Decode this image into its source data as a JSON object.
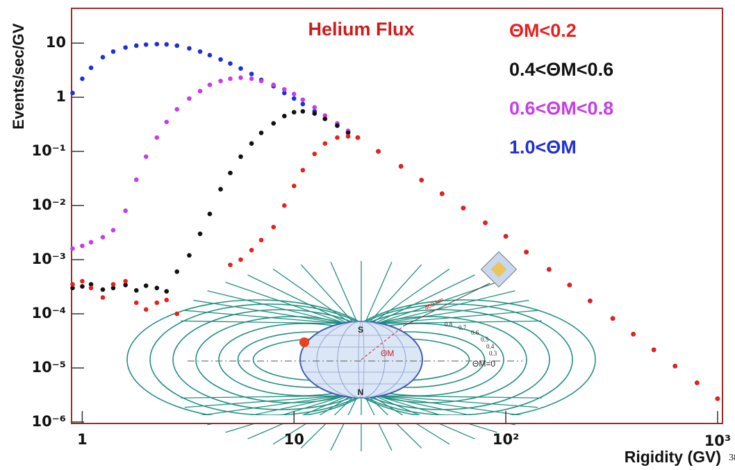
{
  "chart_data": {
    "type": "scatter",
    "title": "Helium Flux",
    "x_label": "Rigidity (GV)",
    "y_label": "Events/sec/GV",
    "log_x": true,
    "log_y": true,
    "legend_position": "upper right",
    "xlim": [
      0.89,
      1055
    ],
    "ylim": [
      9.4e-07,
      44
    ],
    "xticks": [
      1,
      10,
      {
        "value": 100,
        "label": "10²"
      },
      {
        "value": 1000,
        "label": "10³"
      }
    ],
    "yticks": [
      10,
      1,
      {
        "value": 0.1,
        "label": "10⁻¹"
      },
      {
        "value": 0.01,
        "label": "10⁻²"
      },
      {
        "value": 0.001,
        "label": "10⁻³"
      },
      {
        "value": 0.0001,
        "label": "10⁻⁴"
      },
      {
        "value": 1e-05,
        "label": "10⁻⁵"
      },
      {
        "value": 1e-06,
        "label": "10⁻⁶"
      }
    ],
    "x": [
      0.9,
      1,
      1.1,
      1.25,
      1.4,
      1.6,
      1.8,
      2,
      2.25,
      2.5,
      2.8,
      3.2,
      3.6,
      4,
      4.5,
      5,
      5.6,
      6.3,
      7,
      8,
      9,
      10,
      11,
      12.5,
      14,
      16,
      18,
      20,
      25,
      32,
      40,
      50,
      63,
      80,
      100,
      125,
      160,
      200,
      250,
      320,
      400,
      500,
      630,
      800,
      1000
    ],
    "series": [
      {
        "name": "ΘM<0.2",
        "color": "#e8201c",
        "values": [
          0.00035,
          0.0004,
          0.0003,
          0.0002,
          0.00035,
          0.0004,
          0.00016,
          0.00012,
          0.00016,
          0.00018,
          0.0001,
          null,
          null,
          null,
          null,
          0.0008,
          0.001,
          0.0015,
          0.0023,
          0.004,
          0.01,
          0.023,
          0.045,
          0.09,
          0.14,
          0.18,
          0.19,
          0.18,
          0.1,
          0.053,
          0.0295,
          0.0165,
          0.009,
          0.0048,
          0.0027,
          0.00138,
          0.00066,
          0.00034,
          0.000173,
          8.2e-05,
          4.2e-05,
          2.16e-05,
          1.08e-05,
          5.3e-06,
          2.7e-06
        ]
      },
      {
        "name": "0.4<ΘM<0.6",
        "color": "#111111",
        "values": [
          0.0003,
          0.00032,
          0.00035,
          0.00028,
          0.0003,
          0.00034,
          0.00027,
          0.00033,
          0.0003,
          0.00026,
          0.0006,
          0.0012,
          0.003,
          0.007,
          0.02,
          0.04,
          0.08,
          0.14,
          0.22,
          0.33,
          0.45,
          0.53,
          0.55,
          0.5,
          0.4,
          0.3,
          0.22,
          0.18,
          0.1,
          0.053,
          0.0295,
          0.0165,
          0.009,
          0.0048,
          0.0027,
          0.00138,
          0.00066,
          0.00034,
          0.000173,
          8.2e-05,
          4.2e-05,
          2.16e-05,
          1.08e-05,
          5.3e-06,
          2.7e-06
        ]
      },
      {
        "name": "0.6<ΘM<0.8",
        "color": "#c63de8",
        "values": [
          0.0016,
          0.0018,
          0.0021,
          0.0026,
          0.0035,
          0.008,
          0.03,
          0.08,
          0.18,
          0.35,
          0.6,
          0.95,
          1.3,
          1.7,
          2,
          2.2,
          2.3,
          2.2,
          2,
          1.7,
          1.4,
          1.15,
          0.9,
          0.65,
          0.46,
          0.33,
          0.24,
          0.18,
          0.1,
          0.053,
          0.0295,
          0.0165,
          0.009,
          0.0048,
          0.0027,
          0.00138,
          0.00066,
          0.00034,
          0.000173,
          8.2e-05,
          4.2e-05,
          2.16e-05,
          1.08e-05,
          5.3e-06,
          2.7e-06
        ]
      },
      {
        "name": "1.0<ΘM",
        "color": "#1f2fd6",
        "values": [
          1.2,
          2.2,
          3.5,
          5.5,
          7,
          8.3,
          9,
          9.4,
          9.6,
          9.5,
          9,
          8,
          7,
          6,
          5,
          4.2,
          3.4,
          2.7,
          2.1,
          1.6,
          1.2,
          0.95,
          0.75,
          0.55,
          0.4,
          0.3,
          0.23,
          0.18,
          0.1,
          0.053,
          0.0295,
          0.0165,
          0.009,
          0.0048,
          0.0027,
          0.00138,
          0.00066,
          0.00034,
          0.000173,
          8.2e-05,
          4.2e-05,
          2.16e-05,
          1.08e-05,
          5.3e-06,
          2.7e-06
        ]
      }
    ],
    "annotations": [
      "S",
      "N",
      "ΘM",
      "400 km",
      "0.8",
      "0.7",
      "0.6",
      "0.5",
      "0.4",
      "0.3",
      "ΘM=0",
      "38"
    ]
  }
}
